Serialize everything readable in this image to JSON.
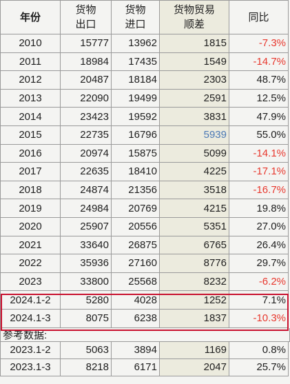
{
  "header": {
    "year": "年份",
    "export_l1": "货物",
    "export_l2": "出口",
    "import_l1": "货物",
    "import_l2": "进口",
    "balance_l1": "货物贸易",
    "balance_l2": "顺差",
    "yoy": "同比"
  },
  "rows": [
    {
      "year": "2010",
      "exp": "15777",
      "imp": "13962",
      "bal": "1815",
      "yoy": "-7.3%"
    },
    {
      "year": "2011",
      "exp": "18984",
      "imp": "17435",
      "bal": "1549",
      "yoy": "-14.7%"
    },
    {
      "year": "2012",
      "exp": "20487",
      "imp": "18184",
      "bal": "2303",
      "yoy": "48.7%"
    },
    {
      "year": "2013",
      "exp": "22090",
      "imp": "19499",
      "bal": "2591",
      "yoy": "12.5%"
    },
    {
      "year": "2014",
      "exp": "23423",
      "imp": "19592",
      "bal": "3831",
      "yoy": "47.9%"
    },
    {
      "year": "2015",
      "exp": "22735",
      "imp": "16796",
      "bal": "5939",
      "yoy": "55.0%"
    },
    {
      "year": "2016",
      "exp": "20974",
      "imp": "15875",
      "bal": "5099",
      "yoy": "-14.1%"
    },
    {
      "year": "2017",
      "exp": "22635",
      "imp": "18410",
      "bal": "4225",
      "yoy": "-17.1%"
    },
    {
      "year": "2018",
      "exp": "24874",
      "imp": "21356",
      "bal": "3518",
      "yoy": "-16.7%"
    },
    {
      "year": "2019",
      "exp": "24984",
      "imp": "20769",
      "bal": "4215",
      "yoy": "19.8%"
    },
    {
      "year": "2020",
      "exp": "25907",
      "imp": "20556",
      "bal": "5351",
      "yoy": "27.0%"
    },
    {
      "year": "2021",
      "exp": "33640",
      "imp": "26875",
      "bal": "6765",
      "yoy": "26.4%"
    },
    {
      "year": "2022",
      "exp": "35936",
      "imp": "27160",
      "bal": "8776",
      "yoy": "29.7%"
    },
    {
      "year": "2023",
      "exp": "33800",
      "imp": "25568",
      "bal": "8232",
      "yoy": "-6.2%"
    },
    {
      "year": "2024.1-2",
      "exp": "5280",
      "imp": "4028",
      "bal": "1252",
      "yoy": "7.1%"
    },
    {
      "year": "2024.1-3",
      "exp": "8075",
      "imp": "6238",
      "bal": "1837",
      "yoy": "-10.3%"
    }
  ],
  "reference_label": "参考数据:",
  "reference_rows": [
    {
      "year": "2023.1-2",
      "exp": "5063",
      "imp": "3894",
      "bal": "1169",
      "yoy": "0.8%"
    },
    {
      "year": "2023.1-3",
      "exp": "8218",
      "imp": "6171",
      "bal": "2047",
      "yoy": "25.7%"
    }
  ],
  "colors": {
    "negative": "#e8382e",
    "highlight_border": "#c8102e",
    "balance_column_bg": "#ecebde",
    "blue_value": "#4a78b5"
  }
}
